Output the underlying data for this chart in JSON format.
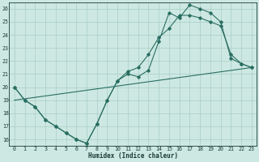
{
  "xlabel": "Humidex (Indice chaleur)",
  "bg_color": "#cde8e2",
  "line_color": "#2a6e63",
  "grid_color": "#a8cdc6",
  "xlim": [
    -0.5,
    23.5
  ],
  "ylim": [
    15.5,
    26.5
  ],
  "xticks": [
    0,
    1,
    2,
    3,
    4,
    5,
    6,
    7,
    8,
    9,
    10,
    11,
    12,
    13,
    14,
    15,
    16,
    17,
    18,
    19,
    20,
    21,
    22,
    23
  ],
  "yticks": [
    16,
    17,
    18,
    19,
    20,
    21,
    22,
    23,
    24,
    25,
    26
  ],
  "curve_sharp_x": [
    0,
    1,
    2,
    3,
    4,
    5,
    6,
    7,
    8,
    9,
    10,
    11,
    12,
    13,
    14,
    15,
    16,
    17,
    18,
    19,
    20,
    21,
    22,
    23
  ],
  "curve_sharp_y": [
    20.0,
    19.0,
    18.5,
    17.5,
    17.0,
    16.5,
    16.0,
    15.7,
    17.2,
    19.0,
    20.5,
    21.0,
    20.8,
    21.3,
    23.5,
    25.7,
    25.3,
    26.3,
    26.0,
    25.7,
    25.0,
    22.2,
    21.8,
    21.5
  ],
  "curve_smooth_x": [
    0,
    1,
    2,
    3,
    4,
    5,
    6,
    7,
    8,
    9,
    10,
    11,
    12,
    13,
    14,
    15,
    16,
    17,
    18,
    19,
    20,
    21,
    22,
    23
  ],
  "curve_smooth_y": [
    20.0,
    19.0,
    18.5,
    17.5,
    17.0,
    16.5,
    16.0,
    15.7,
    17.2,
    19.0,
    20.5,
    21.2,
    21.5,
    22.5,
    23.8,
    24.5,
    25.5,
    25.5,
    25.3,
    25.0,
    24.7,
    22.5,
    21.8,
    21.5
  ],
  "line_x": [
    0,
    23
  ],
  "line_y": [
    19.0,
    21.5
  ]
}
